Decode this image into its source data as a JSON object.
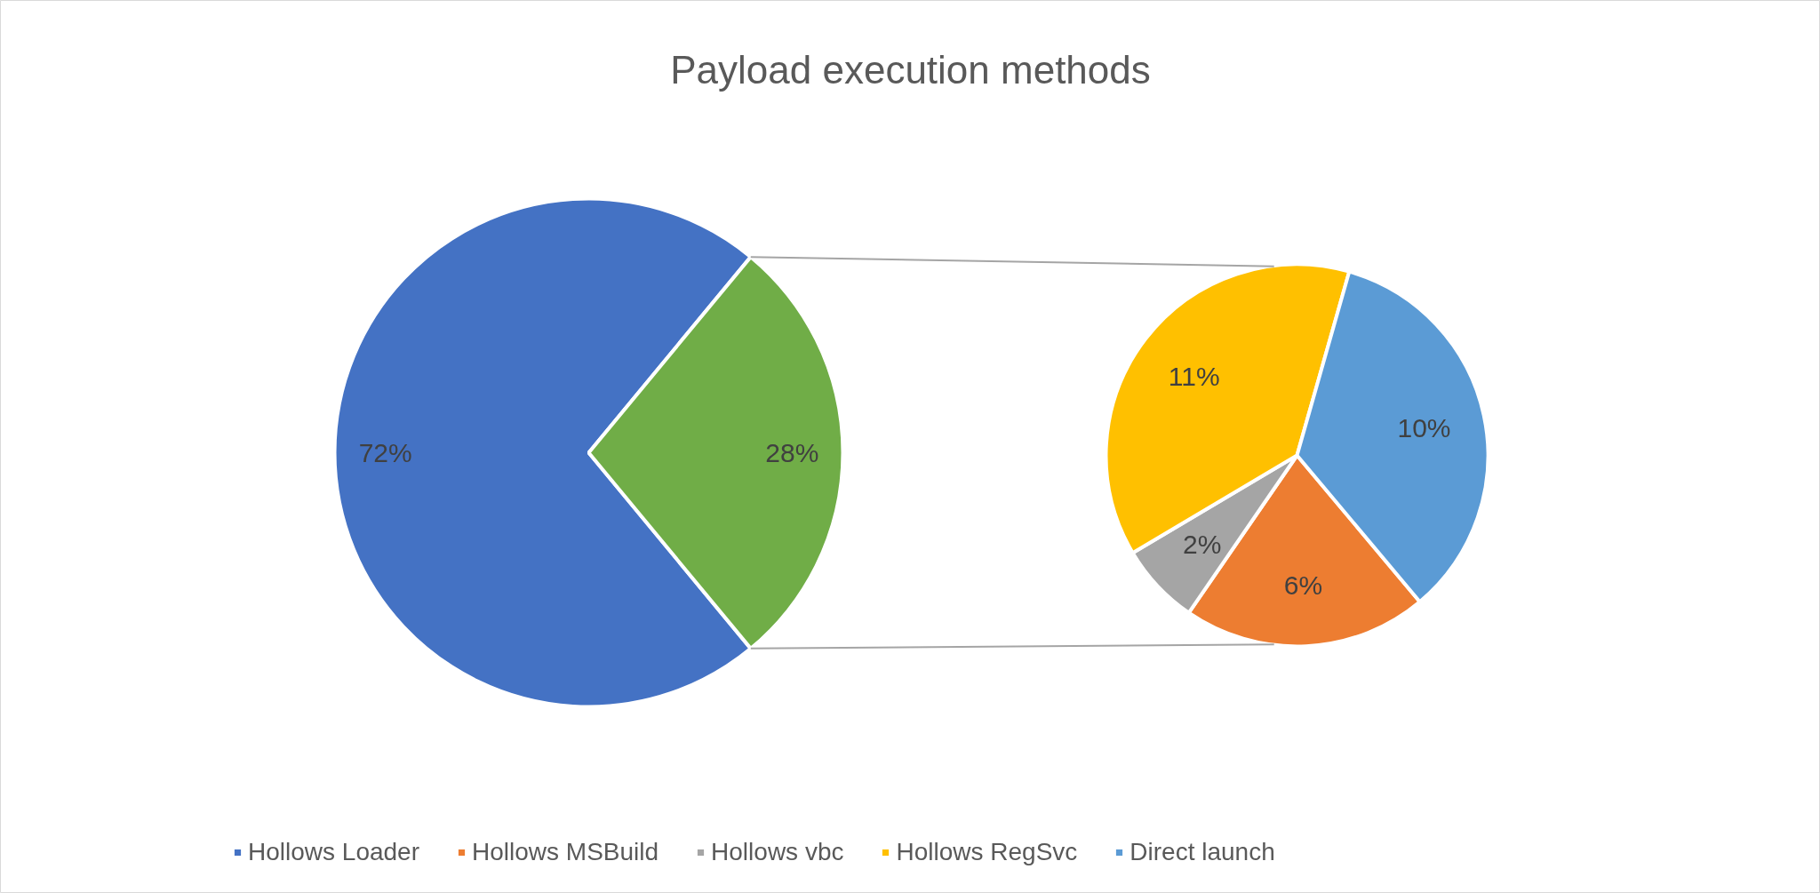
{
  "chart_data": [
    {
      "type": "pie",
      "title": "Payload execution methods",
      "categories": [
        "Hollows Loader",
        null
      ],
      "values": [
        72,
        28
      ],
      "colors": [
        "#4472c4",
        "#70ad47"
      ],
      "value_labels": [
        "72%",
        "28%"
      ],
      "legend": "bottom"
    },
    {
      "type": "pie",
      "categories": [
        "Hollows MSBuild",
        "Hollows vbc",
        "Hollows RegSvc",
        "Direct launch"
      ],
      "values": [
        6,
        2,
        11,
        10
      ],
      "colors": [
        "#ed7d31",
        "#a5a5a5",
        "#ffc000",
        "#5b9bd5"
      ],
      "value_labels": [
        "6%",
        "2%",
        "11%",
        "10%"
      ],
      "legend": "bottom"
    }
  ]
}
